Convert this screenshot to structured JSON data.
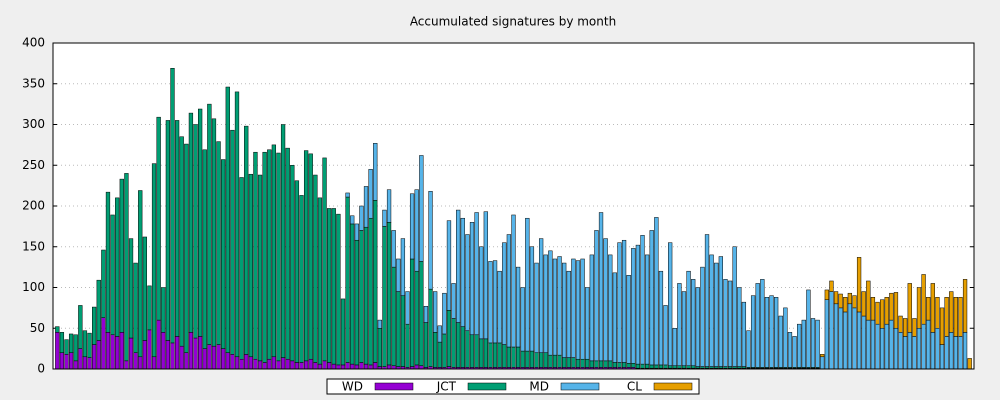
{
  "chart_data": {
    "type": "stacked-bar",
    "title": "Accumulated signatures by month",
    "ylim": [
      0,
      400
    ],
    "yticks": [
      0,
      50,
      100,
      150,
      200,
      250,
      300,
      350,
      400
    ],
    "grid": true,
    "legend": "bottom",
    "series": [
      {
        "name": "WD",
        "color": "#9400d3",
        "values": [
          45,
          20,
          18,
          20,
          10,
          25,
          15,
          14,
          30,
          35,
          63,
          45,
          42,
          40,
          45,
          10,
          38,
          20,
          15,
          35,
          48,
          15,
          60,
          45,
          35,
          32,
          40,
          28,
          20,
          45,
          38,
          40,
          25,
          30,
          28,
          30,
          25,
          20,
          18,
          15,
          12,
          18,
          15,
          12,
          10,
          8,
          12,
          15,
          10,
          14,
          12,
          10,
          8,
          8,
          10,
          12,
          8,
          6,
          10,
          8,
          6,
          5,
          5,
          8,
          6,
          5,
          8,
          6,
          5,
          8,
          3,
          3,
          5,
          4,
          3,
          3,
          2,
          3,
          5,
          4,
          2,
          3,
          2,
          2,
          2,
          3,
          2,
          2,
          2,
          2,
          2,
          2,
          2,
          2,
          2,
          2,
          2,
          2,
          2,
          2,
          2,
          2,
          2,
          2,
          2,
          2,
          2,
          2,
          2,
          2,
          2,
          2,
          2,
          2,
          2,
          2,
          2,
          2,
          2,
          2,
          2,
          2,
          2,
          2,
          2,
          2,
          1,
          1,
          1,
          1,
          1,
          1,
          1,
          1,
          1,
          1,
          1,
          1,
          1,
          1,
          1,
          1,
          1,
          1,
          1,
          1,
          1,
          1,
          1,
          1,
          1,
          1,
          1,
          1,
          1,
          1,
          1,
          1,
          1,
          1,
          1,
          1,
          1,
          1,
          1,
          1,
          0,
          0,
          0,
          0,
          0,
          0,
          0,
          0,
          0,
          0,
          0,
          0,
          0,
          0,
          0,
          0,
          0,
          0,
          0,
          0,
          0,
          0,
          0,
          0,
          0,
          0,
          0,
          0,
          0,
          0,
          0,
          0,
          0
        ]
      },
      {
        "name": "JCT",
        "color": "#009e73",
        "values": [
          7,
          25,
          18,
          23,
          32,
          53,
          32,
          30,
          46,
          74,
          83,
          172,
          147,
          170,
          188,
          230,
          122,
          110,
          204,
          127,
          54,
          237,
          249,
          55,
          270,
          337,
          265,
          257,
          256,
          269,
          262,
          279,
          244,
          295,
          279,
          249,
          232,
          326,
          275,
          325,
          223,
          280,
          224,
          254,
          228,
          258,
          257,
          260,
          255,
          286,
          259,
          240,
          223,
          205,
          258,
          252,
          230,
          204,
          249,
          189,
          191,
          185,
          81,
          203,
          172,
          153,
          162,
          168,
          180,
          199,
          47,
          172,
          175,
          121,
          92,
          87,
          53,
          132,
          115,
          128,
          55,
          95,
          43,
          31,
          41,
          69,
          60,
          55,
          50,
          45,
          40,
          40,
          35,
          35,
          30,
          30,
          30,
          28,
          25,
          25,
          25,
          20,
          20,
          20,
          18,
          18,
          18,
          15,
          15,
          15,
          12,
          12,
          12,
          10,
          10,
          10,
          8,
          8,
          8,
          8,
          8,
          6,
          6,
          6,
          5,
          5,
          5,
          5,
          5,
          4,
          4,
          4,
          4,
          3,
          3,
          3,
          3,
          3,
          3,
          2,
          2,
          2,
          2,
          2,
          2,
          2,
          2,
          2,
          2,
          2,
          1,
          1,
          1,
          1,
          1,
          1,
          1,
          1,
          1,
          1,
          1,
          1,
          1,
          1,
          1,
          1,
          0,
          0,
          0,
          0,
          0,
          0,
          0,
          0,
          0,
          0,
          0,
          0,
          0,
          0,
          0,
          0,
          0,
          0,
          0,
          0,
          0,
          0,
          0,
          0,
          0,
          0,
          0,
          0,
          0,
          0,
          0,
          0,
          0
        ]
      },
      {
        "name": "MD",
        "color": "#56b4e9",
        "values": [
          0,
          0,
          0,
          0,
          0,
          0,
          0,
          0,
          0,
          0,
          0,
          0,
          0,
          0,
          0,
          0,
          0,
          0,
          0,
          0,
          0,
          0,
          0,
          0,
          0,
          0,
          0,
          0,
          0,
          0,
          0,
          0,
          0,
          0,
          0,
          0,
          0,
          0,
          0,
          0,
          0,
          0,
          0,
          0,
          0,
          0,
          0,
          0,
          0,
          0,
          0,
          0,
          0,
          0,
          0,
          0,
          0,
          0,
          0,
          0,
          0,
          0,
          0,
          5,
          10,
          20,
          30,
          50,
          60,
          70,
          10,
          20,
          40,
          45,
          40,
          70,
          40,
          80,
          100,
          130,
          20,
          120,
          50,
          20,
          50,
          110,
          43,
          138,
          133,
          118,
          138,
          150,
          113,
          156,
          100,
          101,
          88,
          125,
          138,
          162,
          98,
          78,
          163,
          128,
          110,
          140,
          120,
          128,
          118,
          121,
          116,
          106,
          121,
          121,
          123,
          88,
          130,
          160,
          182,
          150,
          130,
          110,
          147,
          150,
          108,
          141,
          146,
          158,
          134,
          165,
          181,
          115,
          73,
          151,
          46,
          101,
          91,
          116,
          106,
          97,
          122,
          162,
          137,
          127,
          135,
          107,
          105,
          147,
          97,
          79,
          45,
          88,
          103,
          108,
          86,
          88,
          86,
          63,
          73,
          43,
          38,
          53,
          58,
          95,
          60,
          58,
          15,
          85,
          95,
          80,
          75,
          70,
          80,
          75,
          70,
          65,
          60,
          60,
          55,
          50,
          55,
          60,
          50,
          45,
          40,
          45,
          40,
          50,
          55,
          60,
          45,
          50,
          30,
          40,
          45,
          40,
          40,
          45,
          0
        ]
      },
      {
        "name": "CL",
        "color": "#e69f00",
        "values": [
          0,
          0,
          0,
          0,
          0,
          0,
          0,
          0,
          0,
          0,
          0,
          0,
          0,
          0,
          0,
          0,
          0,
          0,
          0,
          0,
          0,
          0,
          0,
          0,
          0,
          0,
          0,
          0,
          0,
          0,
          0,
          0,
          0,
          0,
          0,
          0,
          0,
          0,
          0,
          0,
          0,
          0,
          0,
          0,
          0,
          0,
          0,
          0,
          0,
          0,
          0,
          0,
          0,
          0,
          0,
          0,
          0,
          0,
          0,
          0,
          0,
          0,
          0,
          0,
          0,
          0,
          0,
          0,
          0,
          0,
          0,
          0,
          0,
          0,
          0,
          0,
          0,
          0,
          0,
          0,
          0,
          0,
          0,
          0,
          0,
          0,
          0,
          0,
          0,
          0,
          0,
          0,
          0,
          0,
          0,
          0,
          0,
          0,
          0,
          0,
          0,
          0,
          0,
          0,
          0,
          0,
          0,
          0,
          0,
          0,
          0,
          0,
          0,
          0,
          0,
          0,
          0,
          0,
          0,
          0,
          0,
          0,
          0,
          0,
          0,
          0,
          0,
          0,
          0,
          0,
          0,
          0,
          0,
          0,
          0,
          0,
          0,
          0,
          0,
          0,
          0,
          0,
          0,
          0,
          0,
          0,
          0,
          0,
          0,
          0,
          0,
          0,
          0,
          0,
          0,
          0,
          0,
          0,
          0,
          0,
          0,
          0,
          0,
          0,
          0,
          0,
          3,
          12,
          13,
          15,
          17,
          18,
          13,
          15,
          67,
          30,
          48,
          28,
          27,
          35,
          33,
          33,
          44,
          20,
          22,
          60,
          22,
          50,
          61,
          28,
          60,
          38,
          45,
          48,
          50,
          48,
          48,
          65,
          13
        ]
      }
    ]
  }
}
